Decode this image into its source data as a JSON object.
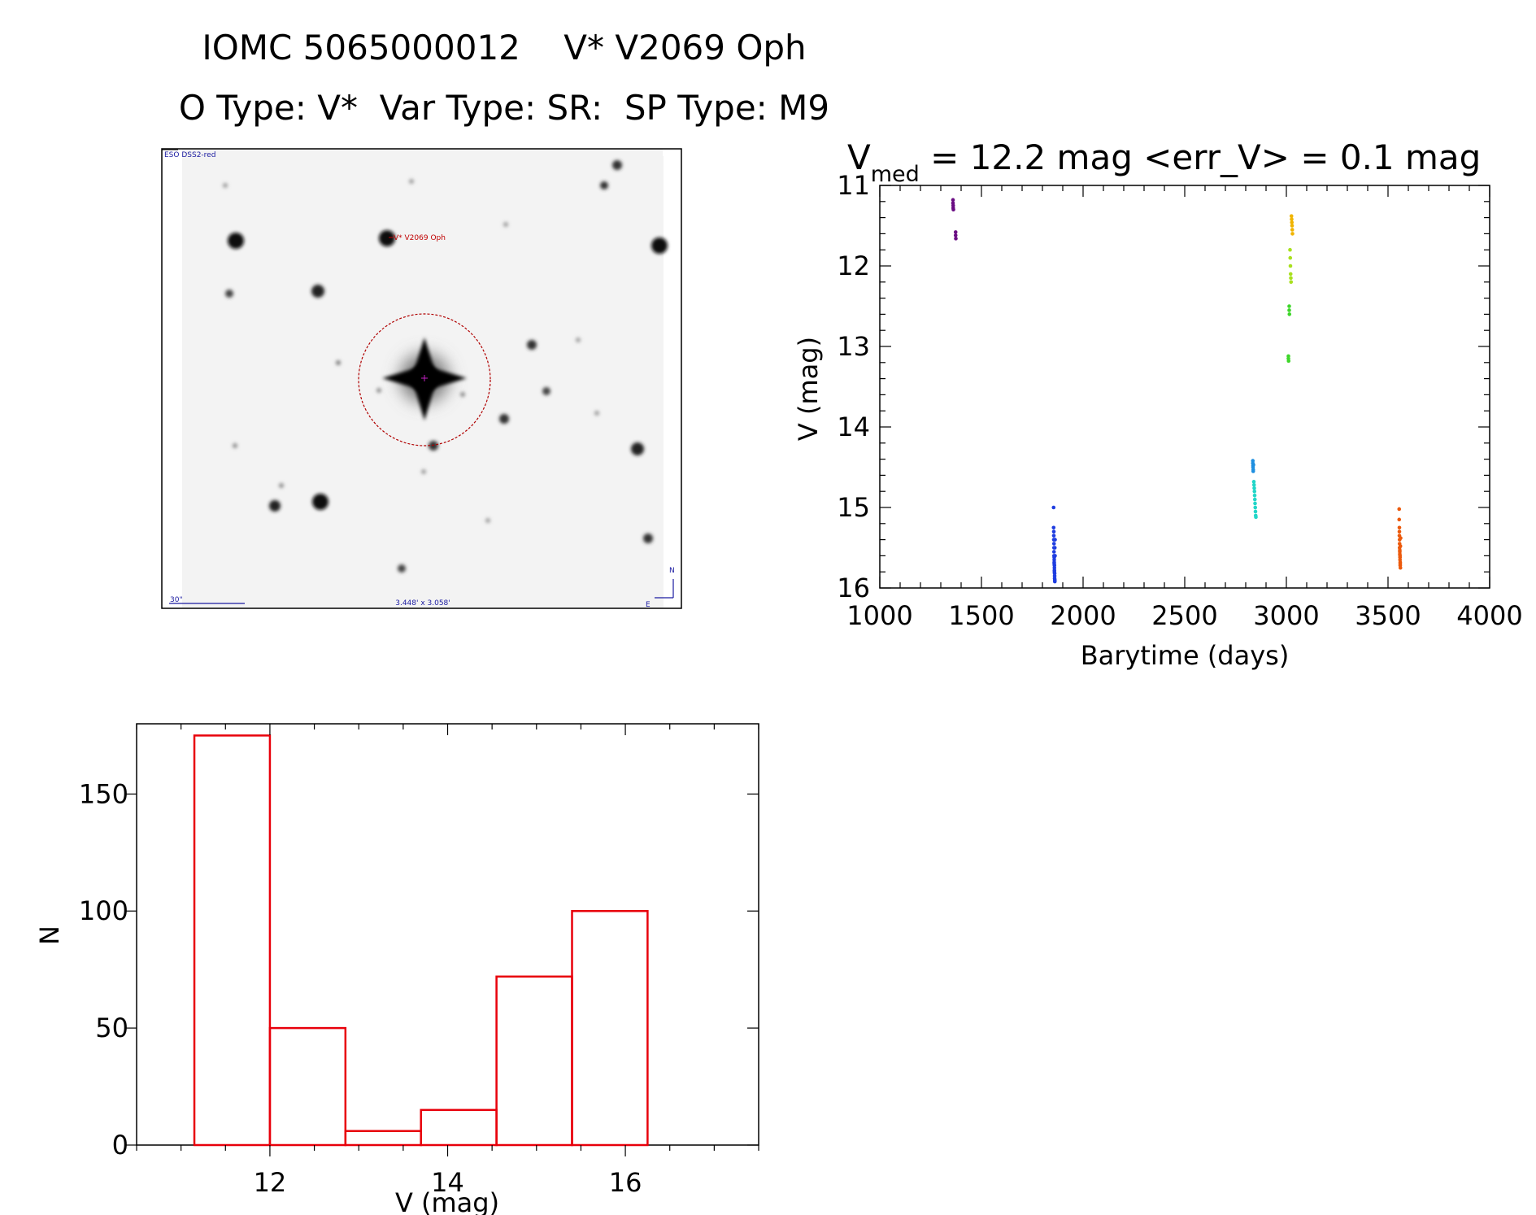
{
  "header": {
    "title": "IOMC 5065000012    V* V2069 Oph",
    "subtitle": "O Type: V*  Var Type: SR:  SP Type: M9"
  },
  "finder_image": {
    "survey_label": "ESO DSS2-red",
    "target_label": "V* V2069 Oph",
    "scale_label": "30\"",
    "fov_label": "3.448' x 3.058'",
    "north_label": "N",
    "east_label": "E"
  },
  "chart_data": [
    {
      "type": "scatter",
      "title_main": "V",
      "title_sub": "med",
      "title_rest": " = 12.2 mag <err_V> = 0.1 mag",
      "xlabel": "Barytime (days)",
      "ylabel": "V (mag)",
      "xlim": [
        1000,
        4000
      ],
      "ylim": [
        16,
        11
      ],
      "y_inverted": true,
      "x_ticks": [
        "1000",
        "1500",
        "2000",
        "2500",
        "3000",
        "3500",
        "4000"
      ],
      "y_ticks": [
        "11",
        "12",
        "13",
        "14",
        "15",
        "16"
      ],
      "series": [
        {
          "color": "#6a0d83",
          "x": [
            1360,
            1360,
            1361,
            1361,
            1362,
            1373,
            1373,
            1374
          ],
          "y": [
            11.18,
            11.22,
            11.25,
            11.28,
            11.3,
            11.58,
            11.62,
            11.66
          ]
        },
        {
          "color": "#1f3de0",
          "x": [
            1855,
            1855,
            1856,
            1856,
            1856,
            1857,
            1857,
            1857,
            1857,
            1858,
            1858,
            1858,
            1858,
            1859,
            1859,
            1859,
            1859,
            1860,
            1860,
            1860,
            1861,
            1861,
            1861,
            1862,
            1862
          ],
          "y": [
            15.0,
            15.25,
            15.3,
            15.35,
            15.4,
            15.45,
            15.5,
            15.55,
            15.6,
            15.62,
            15.65,
            15.68,
            15.7,
            15.72,
            15.75,
            15.78,
            15.8,
            15.82,
            15.85,
            15.88,
            15.9,
            15.92,
            15.5,
            15.4,
            15.6
          ]
        },
        {
          "color": "#1e8fe0",
          "x": [
            2835,
            2835,
            2836,
            2836,
            2837,
            2837,
            2838
          ],
          "y": [
            14.42,
            14.45,
            14.48,
            14.5,
            14.53,
            14.55,
            14.47
          ]
        },
        {
          "color": "#22d6c8",
          "x": [
            2840,
            2841,
            2842,
            2843,
            2844,
            2845,
            2846,
            2847,
            2848,
            2849,
            2850
          ],
          "y": [
            14.68,
            14.72,
            14.76,
            14.8,
            14.85,
            14.9,
            14.95,
            15.0,
            15.05,
            15.1,
            15.12
          ]
        },
        {
          "color": "#3ed62a",
          "x": [
            3010,
            3010,
            3011,
            3014,
            3014,
            3015
          ],
          "y": [
            13.12,
            13.15,
            13.18,
            12.5,
            12.55,
            12.6
          ]
        },
        {
          "color": "#a8e01e",
          "x": [
            3018,
            3019,
            3020,
            3021,
            3022,
            3023
          ],
          "y": [
            11.8,
            11.9,
            12.0,
            12.1,
            12.15,
            12.2
          ]
        },
        {
          "color": "#f0b400",
          "x": [
            3025,
            3026,
            3027,
            3028,
            3029,
            3030
          ],
          "y": [
            11.38,
            11.42,
            11.46,
            11.5,
            11.55,
            11.6
          ]
        },
        {
          "color": "#ec5a0d",
          "x": [
            3555,
            3555,
            3556,
            3556,
            3556,
            3557,
            3557,
            3557,
            3558,
            3558,
            3558,
            3559,
            3559,
            3559,
            3560,
            3560,
            3560,
            3561,
            3561,
            3562
          ],
          "y": [
            15.02,
            15.15,
            15.25,
            15.3,
            15.35,
            15.4,
            15.45,
            15.5,
            15.53,
            15.55,
            15.58,
            15.6,
            15.62,
            15.65,
            15.68,
            15.7,
            15.72,
            15.75,
            15.48,
            15.38
          ]
        }
      ]
    },
    {
      "type": "bar",
      "xlabel": "V (mag)",
      "ylabel": "N",
      "xlim": [
        10.5,
        17.5
      ],
      "ylim": [
        0,
        180
      ],
      "bar_color": "#e8000b",
      "x_ticks": [
        "12",
        "14",
        "16"
      ],
      "y_ticks": [
        "0",
        "50",
        "100",
        "150"
      ],
      "bins": [
        {
          "from": 11.15,
          "to": 12.0,
          "count": 175
        },
        {
          "from": 12.0,
          "to": 12.85,
          "count": 50
        },
        {
          "from": 12.85,
          "to": 13.7,
          "count": 6
        },
        {
          "from": 13.7,
          "to": 14.55,
          "count": 15
        },
        {
          "from": 14.55,
          "to": 15.4,
          "count": 72
        },
        {
          "from": 15.4,
          "to": 16.25,
          "count": 100
        }
      ]
    }
  ]
}
